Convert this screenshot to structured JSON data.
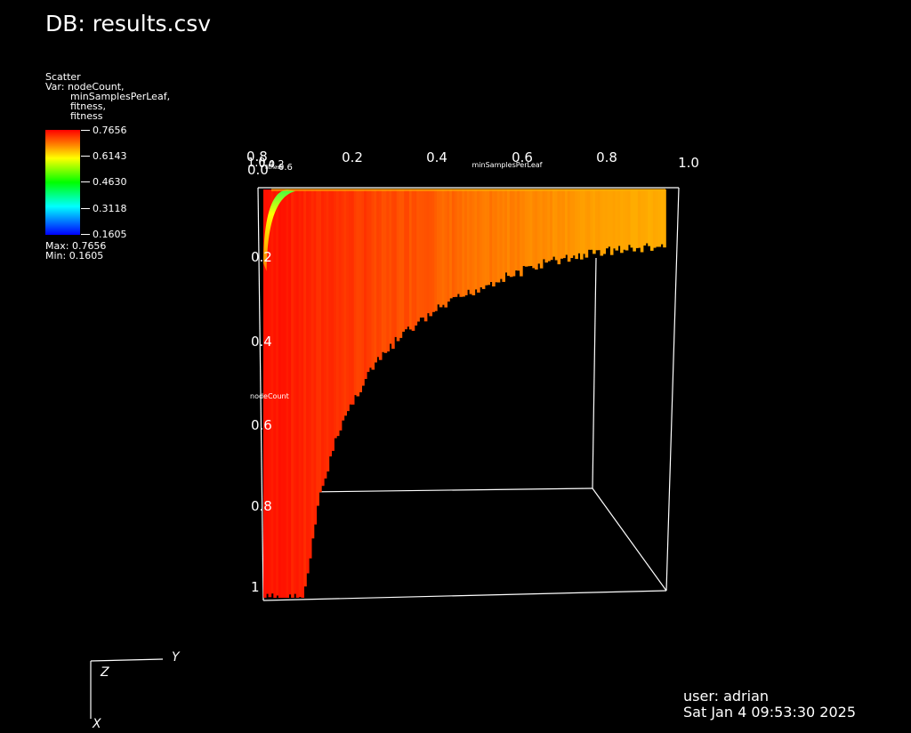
{
  "header": {
    "title": "DB: results.csv"
  },
  "legend": {
    "plot_type": "Scatter",
    "var_label": "Var: nodeCount,",
    "vars_continued": [
      "minSamplesPerLeaf,",
      "fitness,",
      "fitness"
    ],
    "ticks": [
      "0.7656",
      "0.6143",
      "0.4630",
      "0.3118",
      "0.1605"
    ],
    "max_label": "Max:  0.7656",
    "min_label": "Min:  0.1605",
    "colormap": [
      "#ff0000",
      "#ff8000",
      "#ffff00",
      "#00ff00",
      "#00ffff",
      "#0000ff"
    ]
  },
  "chart_data": {
    "type": "scatter",
    "title": "",
    "x_axis": {
      "label": "minSamplesPerLeaf",
      "ticks": [
        "0.2",
        "0.4",
        "0.6",
        "0.8",
        "1.0"
      ],
      "range": [
        0,
        1
      ]
    },
    "y_axis": {
      "label": "nodeCount",
      "ticks": [
        "0.2",
        "0.4",
        "0.6",
        "0.8",
        "1"
      ],
      "range": [
        0,
        1
      ]
    },
    "corner_labels": [
      "0.0",
      "0.8",
      "1.0",
      "0.4",
      "0.2",
      "0.6"
    ],
    "z_axis": {
      "label": "fitness"
    },
    "color_variable": "fitness",
    "color_range": [
      0.1605,
      0.7656
    ],
    "boundary": [
      {
        "x": 0.0,
        "y": 1.0
      },
      {
        "x": 0.1,
        "y": 1.0
      },
      {
        "x": 0.14,
        "y": 0.75
      },
      {
        "x": 0.19,
        "y": 0.58
      },
      {
        "x": 0.26,
        "y": 0.45
      },
      {
        "x": 0.34,
        "y": 0.36
      },
      {
        "x": 0.44,
        "y": 0.29
      },
      {
        "x": 0.56,
        "y": 0.23
      },
      {
        "x": 0.7,
        "y": 0.18
      },
      {
        "x": 0.85,
        "y": 0.15
      },
      {
        "x": 1.0,
        "y": 0.14
      }
    ]
  },
  "triad": {
    "x": "X",
    "y": "Y",
    "z": "Z"
  },
  "footer": {
    "user": "user: adrian",
    "timestamp": "Sat Jan  4 09:53:30 2025"
  }
}
